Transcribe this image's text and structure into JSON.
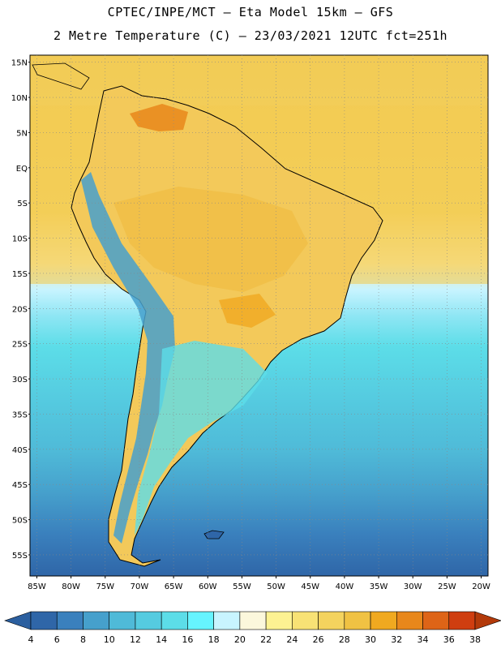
{
  "header": {
    "line1": "CPTEC/INPE/MCT –  Eta Model 15km – GFS",
    "line2": "2 Metre Temperature (C) – 23/03/2021 12UTC fct=251h"
  },
  "map": {
    "lat_labels": [
      "15N",
      "10N",
      "5N",
      "EQ",
      "5S",
      "10S",
      "15S",
      "20S",
      "25S",
      "30S",
      "35S",
      "40S",
      "45S",
      "50S",
      "55S"
    ],
    "lon_labels": [
      "85W",
      "80W",
      "75W",
      "70W",
      "65W",
      "60W",
      "55W",
      "50W",
      "45W",
      "40W",
      "35W",
      "30W",
      "25W",
      "20W"
    ],
    "gridlines": true,
    "extent": {
      "lon": [
        -86,
        -19
      ],
      "lat": [
        -58,
        16
      ]
    }
  },
  "colorbar": {
    "ticks": [
      "4",
      "6",
      "8",
      "10",
      "12",
      "14",
      "16",
      "18",
      "20",
      "22",
      "24",
      "26",
      "28",
      "30",
      "32",
      "34",
      "36",
      "38"
    ],
    "low_arrow_color": "#2b5f9f",
    "high_arrow_color": "#b33a0a",
    "colors": [
      "#2f66a8",
      "#3a80bd",
      "#46a0cc",
      "#4fbad8",
      "#55cbe0",
      "#5cdde8",
      "#66f4ff",
      "#c8f4ff",
      "#fbf7dc",
      "#fdf292",
      "#f8e275",
      "#f4d35e",
      "#f0c243",
      "#f0a920",
      "#e8871b",
      "#de6417",
      "#cf3e10"
    ]
  }
}
